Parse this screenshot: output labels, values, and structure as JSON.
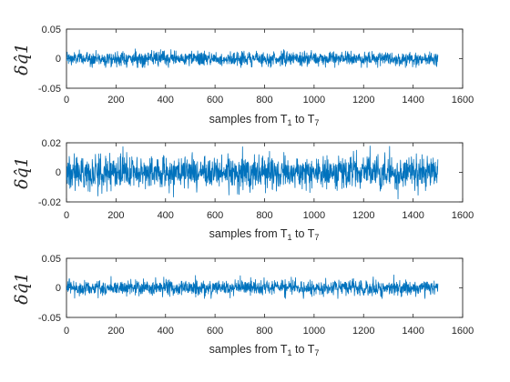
{
  "chart_data": [
    {
      "type": "line",
      "ylabel": "δq̂1",
      "xlabel": "samples from T1 to T7",
      "xlabel_parts": {
        "pre": "samples from T",
        "sub1": "1",
        "mid": " to T",
        "sub2": "7"
      },
      "xlim": [
        0,
        1600
      ],
      "ylim": [
        -0.05,
        0.05
      ],
      "xticks": [
        0,
        200,
        400,
        600,
        800,
        1000,
        1200,
        1400,
        1600
      ],
      "yticks": [
        -0.05,
        0,
        0.05
      ],
      "ytick_labels": [
        "-0.05",
        "0",
        "0.05"
      ],
      "grid": false,
      "series": [
        {
          "color": "#0072BD",
          "n_samples": 1500,
          "x_start": 1,
          "x_end": 1500,
          "noise_std": 0.006,
          "approx_peak_max": 0.023,
          "approx_peak_min": -0.015
        }
      ]
    },
    {
      "type": "line",
      "ylabel": "δq̂1",
      "xlabel": "samples from T1 to T7",
      "xlabel_parts": {
        "pre": "samples from T",
        "sub1": "1",
        "mid": " to T",
        "sub2": "7"
      },
      "xlim": [
        0,
        1600
      ],
      "ylim": [
        -0.02,
        0.02
      ],
      "xticks": [
        0,
        200,
        400,
        600,
        800,
        1000,
        1200,
        1400,
        1600
      ],
      "yticks": [
        -0.02,
        0,
        0.02
      ],
      "ytick_labels": [
        "-0.02",
        "0",
        "0.02"
      ],
      "grid": false,
      "series": [
        {
          "color": "#0072BD",
          "n_samples": 1500,
          "x_start": 1,
          "x_end": 1500,
          "noise_std": 0.0055,
          "approx_peak_max": 0.02,
          "approx_peak_min": -0.018
        }
      ]
    },
    {
      "type": "line",
      "ylabel": "δq̂1",
      "xlabel": "samples from T1 to T7",
      "xlabel_parts": {
        "pre": "samples from T",
        "sub1": "1",
        "mid": " to T",
        "sub2": "7"
      },
      "xlim": [
        0,
        1600
      ],
      "ylim": [
        -0.05,
        0.05
      ],
      "xticks": [
        0,
        200,
        400,
        600,
        800,
        1000,
        1200,
        1400,
        1600
      ],
      "yticks": [
        -0.05,
        0,
        0.05
      ],
      "ytick_labels": [
        "-0.05",
        "0",
        "0.05"
      ],
      "grid": false,
      "series": [
        {
          "color": "#0072BD",
          "n_samples": 1500,
          "x_start": 1,
          "x_end": 1500,
          "noise_std": 0.0065,
          "approx_peak_max": 0.033,
          "approx_peak_min": -0.018
        }
      ]
    }
  ]
}
